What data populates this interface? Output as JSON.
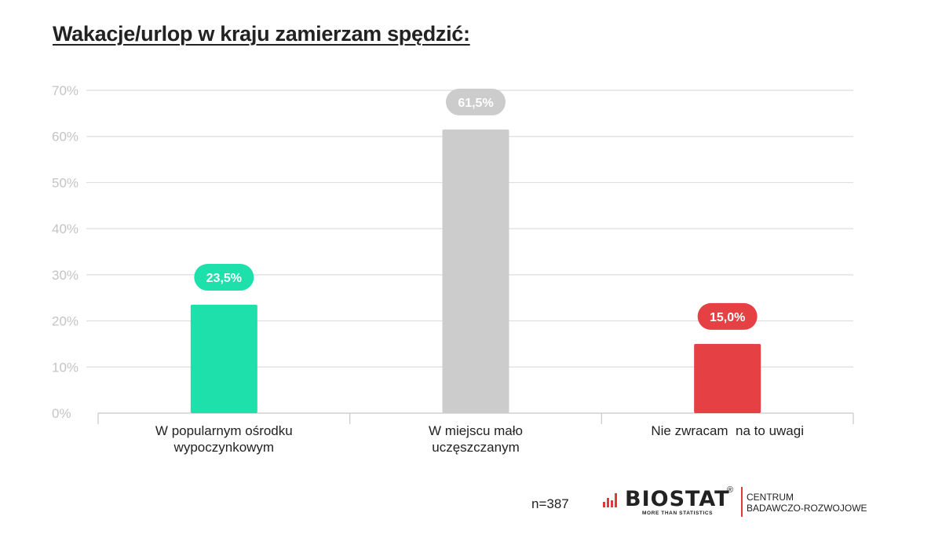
{
  "chart_data": {
    "type": "bar",
    "title": "Wakacje/urlop w kraju zamierzam spędzić:",
    "categories": [
      [
        "W popularnym ośrodku",
        "wypoczynkowym"
      ],
      [
        "W miejscu mało",
        "uczęszczanym"
      ],
      [
        "Nie zwracam  na to uwagi"
      ]
    ],
    "values": [
      23.5,
      61.5,
      15.0
    ],
    "value_labels": [
      "23,5%",
      "61,5%",
      "15,0%"
    ],
    "colors": [
      "#1de0ab",
      "#cccccc",
      "#e54044"
    ],
    "yticks": [
      "0%",
      "10%",
      "20%",
      "30%",
      "40%",
      "50%",
      "60%",
      "70%"
    ],
    "ylim": [
      0,
      70
    ],
    "grid": true
  },
  "footer": {
    "n": "n=387",
    "brand": "BIOSTAT",
    "brand_mark": "®",
    "tagline": "MORE THAN STATISTICS",
    "sub_line1": "CENTRUM",
    "sub_line2": "BADAWCZO-ROZWOJOWE"
  }
}
